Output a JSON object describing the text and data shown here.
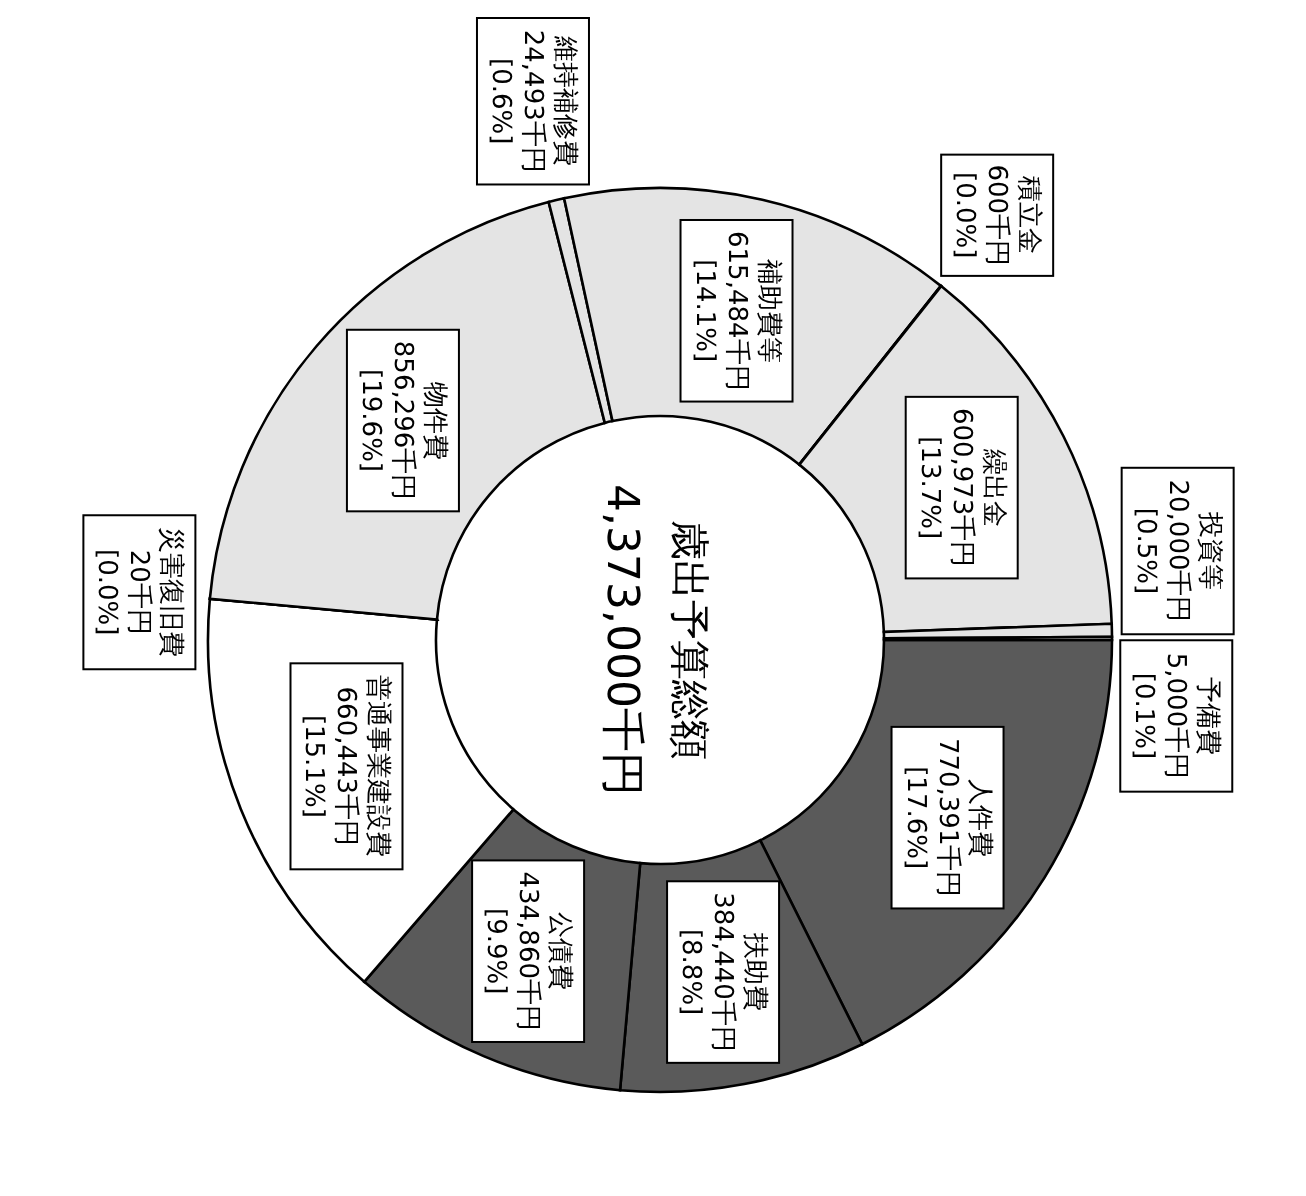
{
  "chart_data": {
    "type": "donut",
    "title": "歳出予算総額",
    "subtitle": "4,373,000千円",
    "categories": [
      "人件費",
      "扶助費",
      "公債費",
      "普通事業建設費",
      "災害復旧費",
      "物件費",
      "維持補修費",
      "補助費等",
      "積立金",
      "繰出金",
      "投資等",
      "予備費"
    ],
    "values": [
      770391,
      384440,
      434860,
      660443,
      20,
      856296,
      24493,
      615484,
      600,
      600973,
      20000,
      5000
    ],
    "value_labels": [
      "770,391千円\n[17.6%]",
      "384,440千円\n[8.8%]",
      "434,860千円\n[9.9%]",
      "660,443千円\n[15.1%]",
      "20千円\n[0.0%]",
      "856,296千円\n[19.6%]",
      "24,493千円\n[0.6%]",
      "615,484千円\n[14.1%]",
      "600千円\n[0.0%]",
      "600,973千円\n[13.7%]",
      "20,000千円\n[0.5%]",
      "5,000千円\n[0.1%]"
    ],
    "colors": [
      "#5a5a5a",
      "#5a5a5a",
      "#5a5a5a",
      "#ffffff",
      "#ffffff",
      "#e4e4e4",
      "#e4e4e4",
      "#e4e4e4",
      "#e4e4e4",
      "#e4e4e4",
      "#e4e4e4",
      "#e4e4e4"
    ]
  }
}
